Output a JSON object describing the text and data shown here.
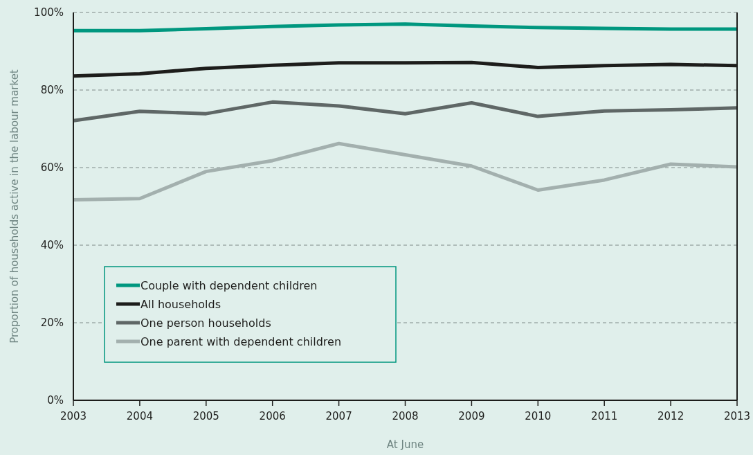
{
  "chart_data": {
    "type": "line",
    "xlabel": "At June",
    "ylabel": "Proportion of households active in the labour market",
    "x": [
      2003,
      2004,
      2005,
      2006,
      2007,
      2008,
      2009,
      2010,
      2011,
      2012,
      2013
    ],
    "xlim": [
      2003,
      2013
    ],
    "xticks": [
      2003,
      2004,
      2005,
      2006,
      2007,
      2008,
      2009,
      2010,
      2011,
      2012,
      2013
    ],
    "ylim": [
      0,
      100
    ],
    "yticks": [
      {
        "value": 0,
        "label": "0%"
      },
      {
        "value": 20,
        "label": "20%"
      },
      {
        "value": 40,
        "label": "40%"
      },
      {
        "value": 60,
        "label": "60%"
      },
      {
        "value": 80,
        "label": "80%"
      },
      {
        "value": 100,
        "label": "100%"
      }
    ],
    "grid": "y",
    "legend": "bottom left",
    "marker": "none",
    "line_style": "solid",
    "series": [
      {
        "name": "Couple with dependent children",
        "color": "#00977f",
        "values": [
          95.3,
          95.3,
          95.8,
          96.4,
          96.8,
          97.0,
          96.5,
          96.1,
          95.9,
          95.7,
          95.7
        ]
      },
      {
        "name": "All households",
        "color": "#1d1d1b",
        "values": [
          83.6,
          84.2,
          85.6,
          86.4,
          87.0,
          87.0,
          87.1,
          85.8,
          86.3,
          86.6,
          86.3
        ]
      },
      {
        "name": "One person households",
        "color": "#5f6766",
        "values": [
          72.1,
          74.5,
          73.9,
          76.9,
          75.9,
          73.9,
          76.7,
          73.2,
          74.6,
          74.9,
          75.4
        ]
      },
      {
        "name": "One parent with dependent children",
        "color": "#a3b0ae",
        "values": [
          51.7,
          52.0,
          59.0,
          61.8,
          66.2,
          63.3,
          60.4,
          54.2,
          56.8,
          60.9,
          60.2
        ]
      }
    ]
  }
}
